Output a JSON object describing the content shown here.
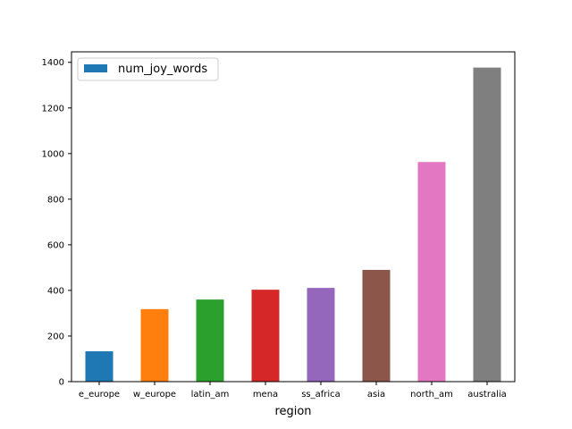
{
  "chart_data": {
    "type": "bar",
    "categories": [
      "e_europe",
      "w_europe",
      "latin_am",
      "mena",
      "ss_africa",
      "asia",
      "north_am",
      "australia"
    ],
    "series": [
      {
        "name": "num_joy_words",
        "values": [
          133,
          318,
          360,
          403,
          411,
          490,
          963,
          1377
        ]
      }
    ],
    "bar_colors": [
      "#1f77b4",
      "#ff7f0e",
      "#2ca02c",
      "#d62728",
      "#9467bd",
      "#8c564b",
      "#e377c2",
      "#7f7f7f"
    ],
    "legend_color": "#1f77b4",
    "xlabel": "region",
    "ylabel": "",
    "ylim": [
      0,
      1400
    ],
    "yticks": [
      0,
      200,
      400,
      600,
      800,
      1000,
      1200,
      1400
    ],
    "grid": false,
    "legend_position": "top-left"
  }
}
